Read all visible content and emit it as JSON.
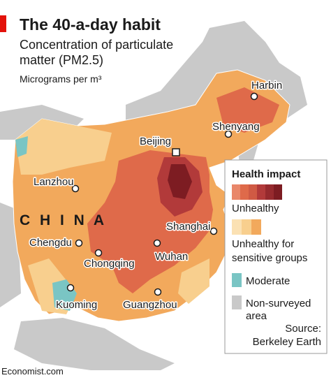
{
  "header": {
    "title": "The 40-a-day habit",
    "subtitle": [
      "Concentration of particulate",
      "matter (PM2.5)"
    ],
    "unit": "Micrograms per m³"
  },
  "map": {
    "country_label": "C H I N A",
    "cities": [
      {
        "name": "Harbin"
      },
      {
        "name": "Shenyang"
      },
      {
        "name": "Beijing"
      },
      {
        "name": "Lanzhou"
      },
      {
        "name": "Chengdu"
      },
      {
        "name": "Chongqing"
      },
      {
        "name": "Shanghai"
      },
      {
        "name": "Wuhan"
      },
      {
        "name": "Kuoming"
      },
      {
        "name": "Guangzhou"
      }
    ]
  },
  "legend": {
    "title": "Health impact",
    "items": [
      {
        "lines": [
          "Unhealthy"
        ]
      },
      {
        "lines": [
          "Unhealthy for",
          "sensitive groups"
        ]
      },
      {
        "lines": [
          "Moderate"
        ]
      },
      {
        "lines": [
          "Non-surveyed",
          "area"
        ]
      }
    ]
  },
  "source": [
    "Source:",
    "Berkeley Earth"
  ],
  "footer": "Economist.com"
}
